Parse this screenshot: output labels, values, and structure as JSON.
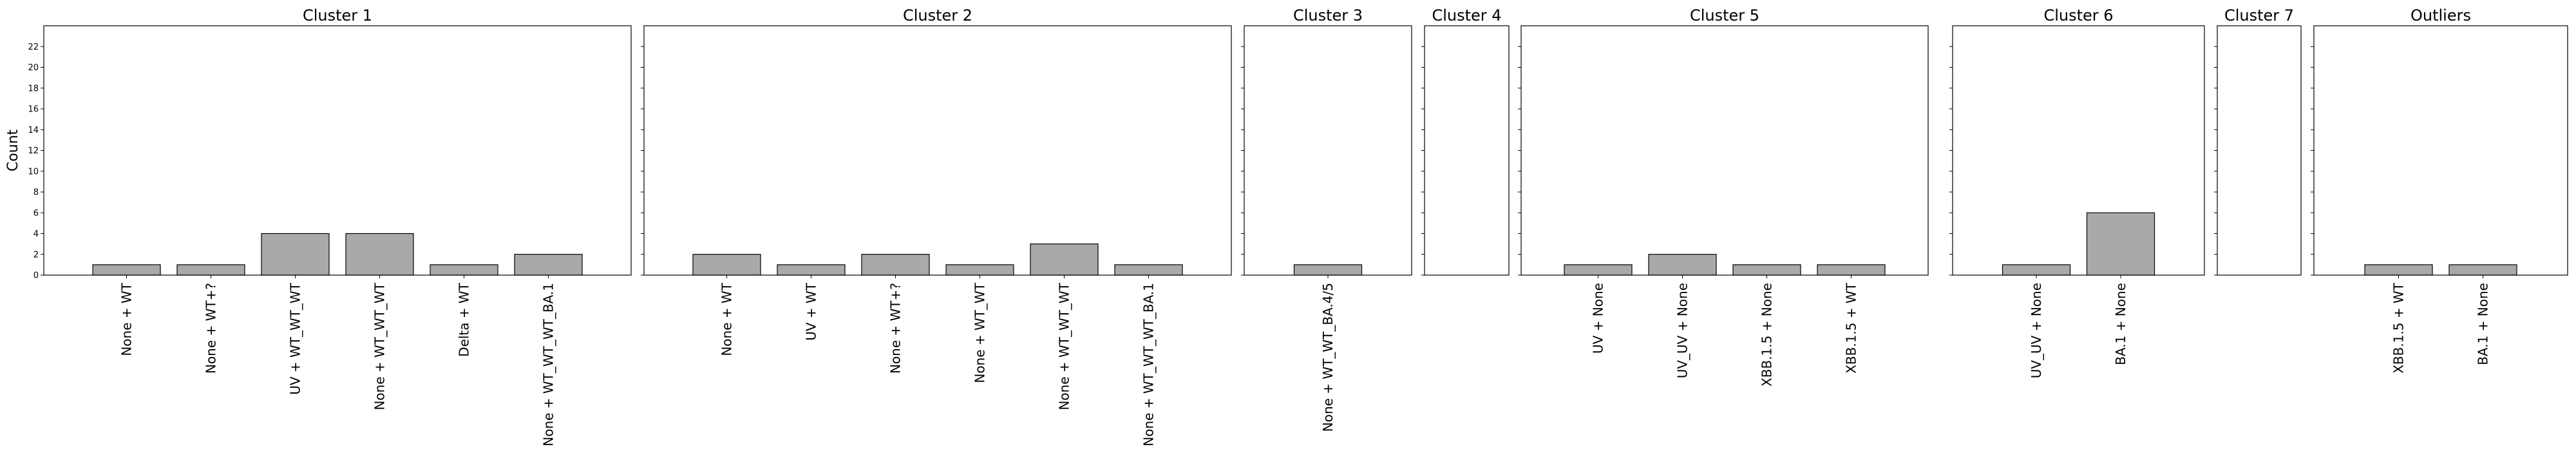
{
  "chart_data": {
    "type": "bar",
    "ylabel": "Count",
    "ylim": [
      0,
      24
    ],
    "yticks": [
      0,
      2,
      4,
      6,
      8,
      10,
      12,
      14,
      16,
      18,
      20,
      22
    ],
    "shared_y": true,
    "bar_color": "#a9a9a9",
    "edge_color": "#000000",
    "grid": false,
    "panels": [
      {
        "title": "Cluster 1",
        "categories": [
          "None + WT",
          "None + WT+?",
          "UV + WT_WT_WT",
          "None + WT_WT_WT",
          "Delta + WT",
          "None + WT_WT_WT_BA.1"
        ],
        "values": [
          1,
          1,
          4,
          4,
          1,
          2
        ]
      },
      {
        "title": "Cluster 2",
        "categories": [
          "None + WT",
          "UV + WT",
          "None + WT+?",
          "None + WT_WT",
          "None + WT_WT_WT",
          "None + WT_WT_WT_BA.1"
        ],
        "values": [
          2,
          1,
          2,
          1,
          3,
          1
        ]
      },
      {
        "title": "Cluster 3",
        "categories": [
          "None + WT_WT_BA.4/5"
        ],
        "values": [
          1
        ]
      },
      {
        "title": "Cluster 4",
        "categories": [],
        "values": []
      },
      {
        "title": "Cluster 5",
        "categories": [
          "UV + None",
          "UV_UV + None",
          "XBB.1.5 + None",
          "XBB.1.5 + WT"
        ],
        "values": [
          1,
          2,
          1,
          1
        ]
      },
      {
        "title": "Cluster 6",
        "categories": [
          "UV_UV + None",
          "BA.1 + None"
        ],
        "values": [
          1,
          6
        ]
      },
      {
        "title": "Cluster 7",
        "categories": [],
        "values": []
      },
      {
        "title": "Outliers",
        "categories": [
          "XBB.1.5 + WT",
          "BA.1 + None"
        ],
        "values": [
          1,
          1
        ]
      }
    ]
  }
}
